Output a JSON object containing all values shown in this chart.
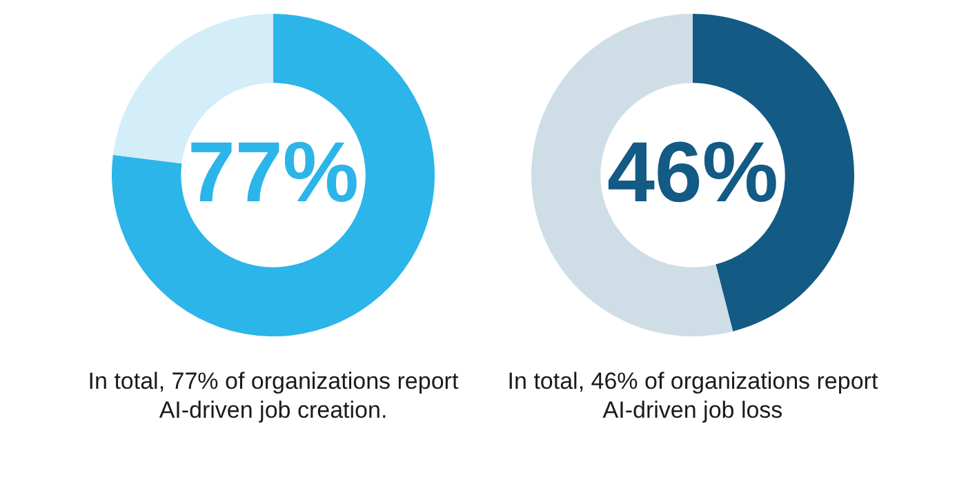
{
  "chart_data": [
    {
      "type": "donut",
      "categories": [
        null,
        null
      ],
      "values": [
        77,
        23
      ],
      "colors": [
        "#2bb5e9",
        "#d3eef9"
      ],
      "value_labels": [
        "77%",
        null
      ],
      "legend": false,
      "annotations": [
        "In total, 77% of organizations report AI-driven job creation."
      ]
    },
    {
      "type": "donut",
      "categories": [
        null,
        null
      ],
      "values": [
        46,
        54
      ],
      "colors": [
        "#135a85",
        "#cfdee6"
      ],
      "value_labels": [
        "46%",
        null
      ],
      "legend": false,
      "annotations": [
        "In total, 46% of organizations report AI-driven job loss"
      ]
    }
  ]
}
